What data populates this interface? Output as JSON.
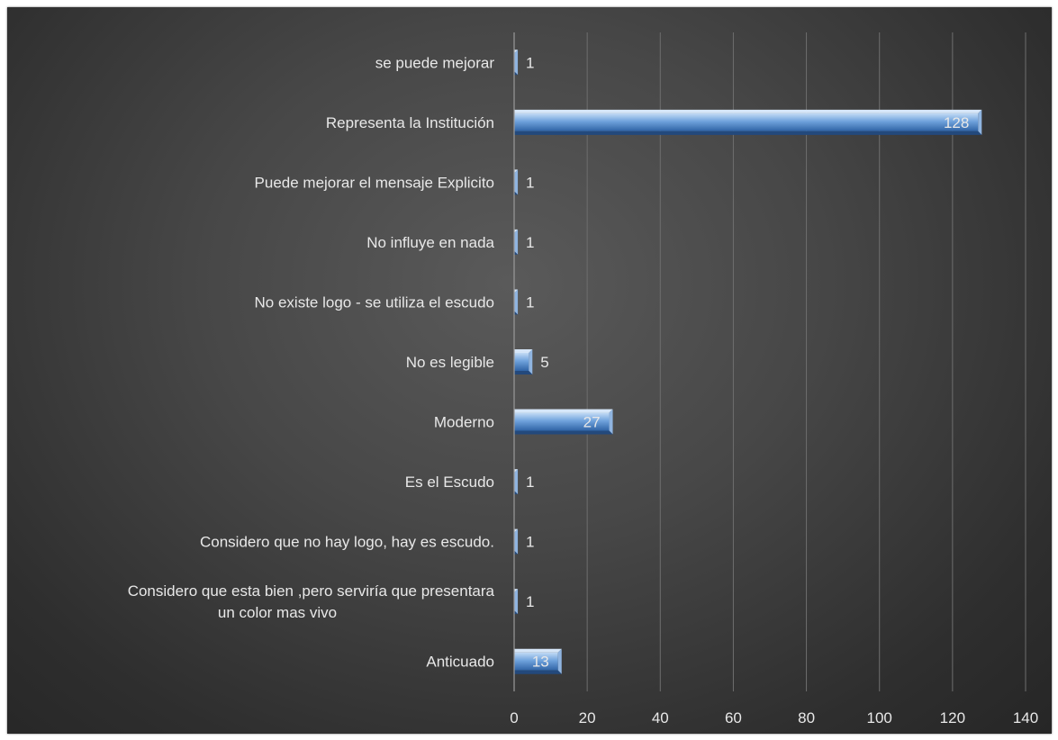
{
  "chart_data": {
    "type": "bar",
    "orientation": "horizontal",
    "categories": [
      "se puede mejorar",
      "Representa la Institución",
      "Puede mejorar el mensaje Explicito",
      "No influye en nada",
      "No existe logo - se utiliza el escudo",
      "No es legible",
      "Moderno",
      "Es el Escudo",
      "Considero que no hay logo, hay es escudo.",
      [
        "Considero que esta bien ,pero serviría que presentara",
        "un color mas vivo"
      ],
      "Anticuado"
    ],
    "values": [
      1,
      128,
      1,
      1,
      1,
      5,
      27,
      1,
      1,
      1,
      13
    ],
    "xlim": [
      0,
      140
    ],
    "xticks": [
      0,
      20,
      40,
      60,
      80,
      100,
      120,
      140
    ],
    "grid": true,
    "data_labels": true,
    "colors": {
      "bar_light": "#b8d3f0",
      "bar_mid": "#5f95d4",
      "bar_dark": "#2e5f9e",
      "bar_end": "#a6c4e8"
    }
  }
}
